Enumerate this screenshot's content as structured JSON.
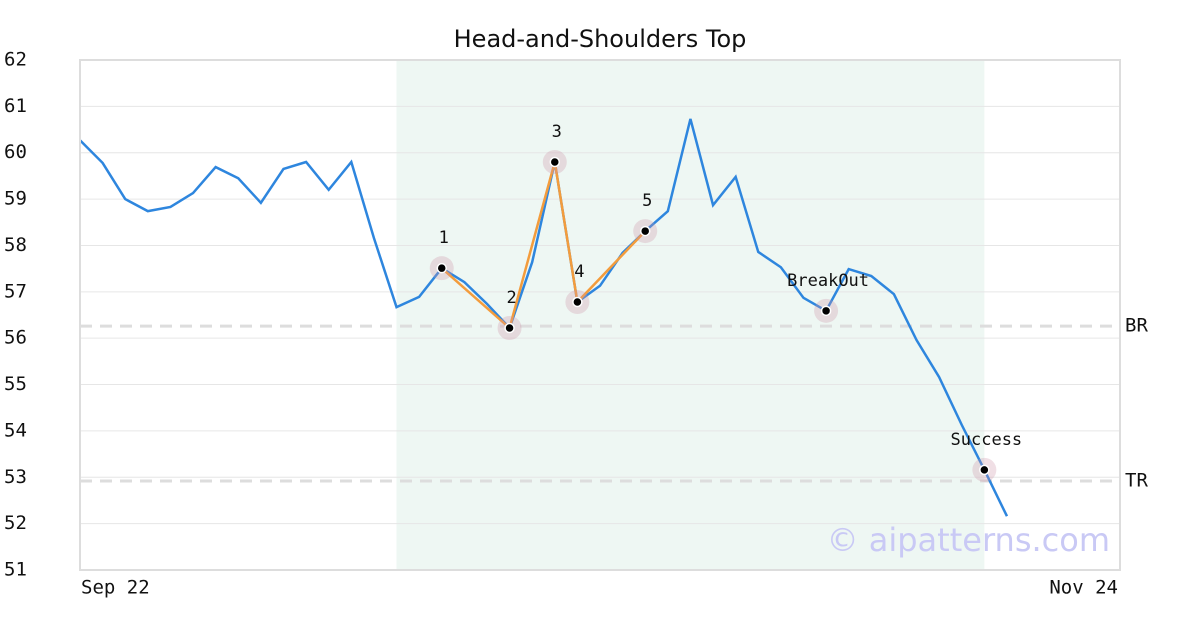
{
  "chart_data": {
    "type": "line",
    "title": "Head-and-Shoulders Top",
    "categories": [
      "Sep 22",
      null,
      null,
      null,
      null,
      null,
      null,
      null,
      null,
      null,
      null,
      null,
      null,
      null,
      null,
      null,
      null,
      null,
      null,
      null,
      null,
      null,
      null,
      null,
      null,
      null,
      null,
      null,
      null,
      null,
      null,
      null,
      null,
      null,
      null,
      null,
      null,
      null,
      null,
      null,
      null,
      null,
      null,
      null,
      null,
      null,
      "Nov 24"
    ],
    "series": [
      {
        "color": "#2e86de",
        "values": [
          60.27,
          59.78,
          59.0,
          58.74,
          58.83,
          59.13,
          59.69,
          59.45,
          58.92,
          59.65,
          59.8,
          59.2,
          59.8,
          58.16,
          56.67,
          56.89,
          57.51,
          57.21,
          56.74,
          56.22,
          57.64,
          59.8,
          56.78,
          57.13,
          57.84,
          58.31,
          58.74,
          60.73,
          58.87,
          59.48,
          57.86,
          57.53,
          56.87,
          56.59,
          57.49,
          57.34,
          56.95,
          55.96,
          55.16,
          54.13,
          53.16,
          52.16,
          null,
          null,
          null,
          null,
          null
        ]
      }
    ],
    "ylim": [
      51,
      62
    ],
    "yticks": [
      51,
      52,
      53,
      54,
      55,
      56,
      57,
      58,
      59,
      60,
      61,
      62
    ],
    "grid": true,
    "shaded_range": [
      14,
      40
    ],
    "shade_color": "#eef7f3",
    "pattern_color": "#f39c3c",
    "points": [
      {
        "label": "1",
        "index": 16,
        "value": 57.51
      },
      {
        "label": "2",
        "index": 19,
        "value": 56.22
      },
      {
        "label": "3",
        "index": 21,
        "value": 59.8
      },
      {
        "label": "4",
        "index": 22,
        "value": 56.78
      },
      {
        "label": "5",
        "index": 25,
        "value": 58.31
      },
      {
        "label": "BreakOut",
        "index": 33,
        "value": 56.59
      },
      {
        "label": "Success",
        "index": 40,
        "value": 53.16
      }
    ],
    "pattern_path": [
      0,
      1,
      2,
      3,
      4
    ],
    "hlines": [
      {
        "label": "BR",
        "value": 56.26
      },
      {
        "label": "TR",
        "value": 52.92
      }
    ],
    "watermark": "© aipatterns.com"
  }
}
